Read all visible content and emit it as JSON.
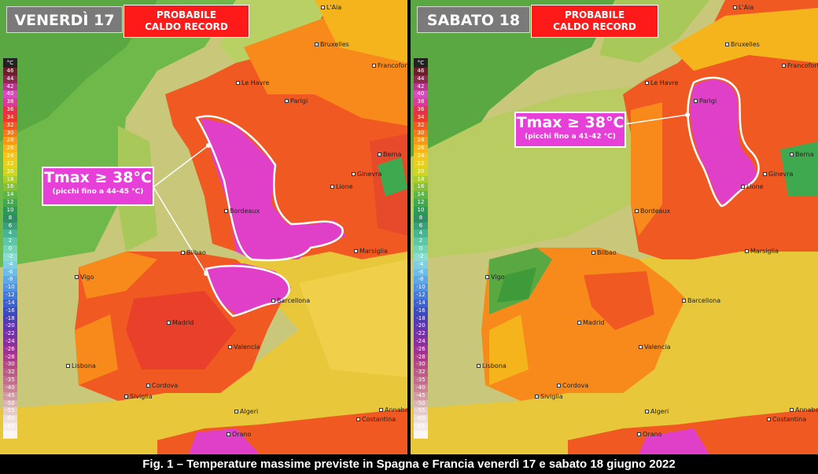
{
  "caption": "Fig. 1 – Temperature massime previste in Spagna e Francia venerdì 17 e sabato 18 giugno 2022",
  "scale": {
    "unit": "°C",
    "labels": [
      "46",
      "44",
      "42",
      "40",
      "38",
      "36",
      "34",
      "32",
      "30",
      "28",
      "26",
      "24",
      "22",
      "20",
      "18",
      "16",
      "14",
      "12",
      "10",
      "8",
      "6",
      "4",
      "2",
      "0",
      "-2",
      "-4",
      "-6",
      "-8",
      "-10",
      "-12",
      "-14",
      "-16",
      "-18",
      "-20",
      "-22",
      "-24",
      "-26",
      "-28",
      "-30",
      "-32",
      "-35",
      "-40",
      "-45",
      "-50",
      "-55",
      "-60",
      "-65",
      "-70"
    ],
    "colors": [
      "#6b1f2a",
      "#8c2a4d",
      "#b8368f",
      "#d94bbd",
      "#e0389a",
      "#e8304a",
      "#f0382a",
      "#f25a1e",
      "#f57a18",
      "#f79a1a",
      "#f8b51c",
      "#f5c61d",
      "#e8d01f",
      "#cfd425",
      "#a9cd2b",
      "#84c13a",
      "#5db748",
      "#3fa94f",
      "#2a9a55",
      "#2f8f64",
      "#3aa07a",
      "#48b592",
      "#5dc6a6",
      "#76d4b6",
      "#8ddcd2",
      "#7fcfe0",
      "#6fbde6",
      "#5fa8e8",
      "#4f91e6",
      "#4478dc",
      "#3d5fcf",
      "#3a4ac0",
      "#4a3db5",
      "#5e37ad",
      "#7433a5",
      "#88319c",
      "#9c3393",
      "#aa3b8a",
      "#b54885",
      "#bd5a86",
      "#c46d8c",
      "#cb8396",
      "#d39ba3",
      "#dbb4b5",
      "#e4cdca",
      "#ecdfdc",
      "#f3ecea",
      "#f8f5f4"
    ]
  },
  "left": {
    "day": "VENERDÌ 17",
    "record_line1": "PROBABILE",
    "record_line2": "CALDO RECORD",
    "tmax": "Tmax ≥ 38°C",
    "tmax_note": "(picchi fino a 44-45 °C)",
    "cities": {
      "alia": "L'Aia",
      "bruxelles": "Bruxelles",
      "francoforte": "Francoforte",
      "lehavre": "Le Havre",
      "parigi": "Parigi",
      "berna": "Berna",
      "ginevra": "Ginevra",
      "lione": "Lione",
      "bordeaux": "Bordeaux",
      "marsiglia": "Marsiglia",
      "bilbao": "Bilbao",
      "vigo": "Vigo",
      "barcellona": "Barcellona",
      "madrid": "Madrid",
      "valencia": "Valencia",
      "lisbona": "Lisbona",
      "cordova": "Cordova",
      "siviglia": "Siviglia",
      "algeri": "Algeri",
      "annaba": "Annaba",
      "costantina": "Costantina",
      "orano": "Orano"
    }
  },
  "right": {
    "day": "SABATO 18",
    "record_line1": "PROBABILE",
    "record_line2": "CALDO RECORD",
    "tmax": "Tmax ≥ 38°C",
    "tmax_note": "(picchi fino a 41-42 °C)",
    "cities": {
      "alia": "L'Aia",
      "bruxelles": "Bruxelles",
      "francoforte": "Francoforte",
      "lehavre": "Le Havre",
      "parigi": "Parigi",
      "berna": "Berna",
      "ginevra": "Ginevra",
      "lione": "Lione",
      "bordeaux": "Bordeaux",
      "marsiglia": "Marsiglia",
      "bilbao": "Bilbao",
      "vigo": "Vigo",
      "barcellona": "Barcellona",
      "madrid": "Madrid",
      "valencia": "Valencia",
      "lisbona": "Lisbona",
      "cordova": "Cordova",
      "siviglia": "Siviglia",
      "algeri": "Algeri",
      "annaba": "Annaba",
      "costantina": "Costantina",
      "orano": "Orano"
    }
  },
  "colors": {
    "sea": "#c9d47a",
    "atlantic": "#7fbf52",
    "land_hot": "#f2551f",
    "land_warm": "#f88a1c",
    "land_mild": "#f5b41c",
    "extreme": "#e040c8",
    "badge_red": "#ff1a1a",
    "badge_grey": "#7a7a7a"
  }
}
